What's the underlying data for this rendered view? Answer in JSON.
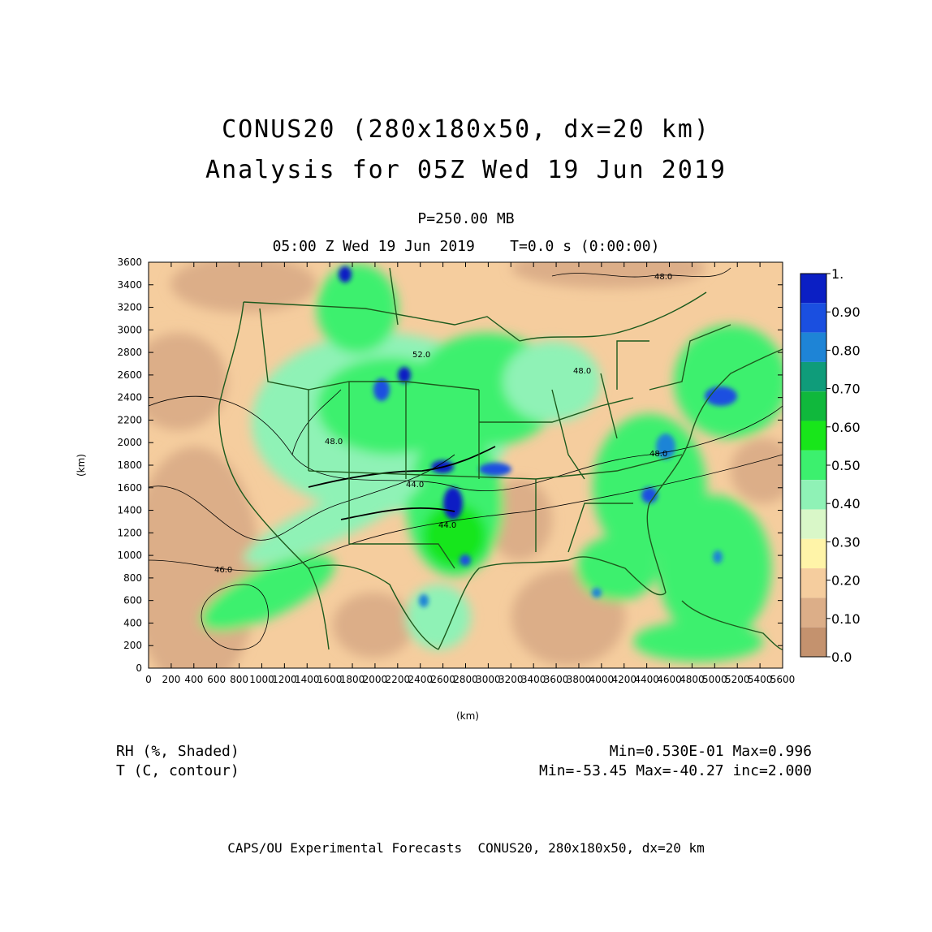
{
  "title": "CONUS20 (280x180x50, dx=20 km)",
  "subtitle": "Analysis for 05Z Wed 19 Jun 2019",
  "level": "P=250.00 MB",
  "time_line": "05:00 Z Wed 19 Jun 2019    T=0.0 s (0:00:00)",
  "axes": {
    "xlabel": "(km)",
    "ylabel": "(km)",
    "x_ticks": [
      "0",
      "200",
      "400",
      "600",
      "800",
      "1000",
      "1200",
      "1400",
      "1600",
      "1800",
      "2000",
      "2200",
      "2400",
      "2600",
      "2800",
      "3000",
      "3200",
      "3400",
      "3600",
      "3800",
      "4000",
      "4200",
      "4400",
      "4600",
      "4800",
      "5000",
      "5200",
      "5400",
      "5600"
    ],
    "y_ticks": [
      "0",
      "200",
      "400",
      "600",
      "800",
      "1000",
      "1200",
      "1400",
      "1600",
      "1800",
      "2000",
      "2200",
      "2400",
      "2600",
      "2800",
      "3000",
      "3200",
      "3400",
      "3600"
    ]
  },
  "colorbar": {
    "labels": [
      "1.",
      "0.90",
      "0.80",
      "0.70",
      "0.60",
      "0.50",
      "0.40",
      "0.30",
      "0.20",
      "0.10",
      "0.0"
    ],
    "colors": [
      "#0b1fc4",
      "#1a4fe0",
      "#1e84d6",
      "#0f9c7a",
      "#10b83c",
      "#18e61a",
      "#3cf06e",
      "#8ff2b6",
      "#d9f7c8",
      "#fff4a8",
      "#f5cd9e",
      "#dcae88",
      "#c4926e"
    ]
  },
  "contour_labels": [
    "48.0",
    "52.0",
    "48.0",
    "48.0",
    "44.0",
    "44.0",
    "46.0",
    "48.0"
  ],
  "legend": {
    "rh_label": "RH (%, Shaded)",
    "t_label": "T (C, contour)",
    "rh_stats": "Min=0.530E-01 Max=0.996",
    "t_stats": "Min=-53.45 Max=-40.27 inc=2.000"
  },
  "credit": "CAPS/OU Experimental Forecasts  CONUS20, 280x180x50, dx=20 km"
}
